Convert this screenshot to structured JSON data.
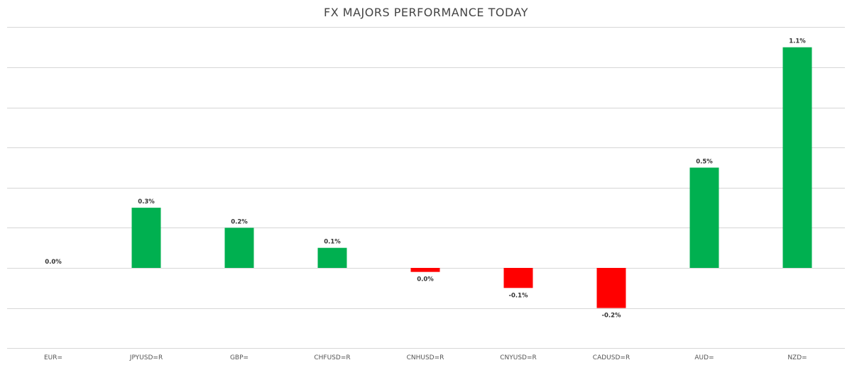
{
  "chart_data": {
    "type": "bar",
    "title": "FX MAJORS PERFORMANCE TODAY",
    "xlabel": "",
    "ylabel": "",
    "categories": [
      "EUR=",
      "JPYUSD=R",
      "GBP=",
      "CHFUSD=R",
      "CNHUSD=R",
      "CNYUSD=R",
      "CADUSD=R",
      "AUD=",
      "NZD="
    ],
    "values": [
      0.0,
      0.3,
      0.2,
      0.1,
      -0.02,
      -0.1,
      -0.2,
      0.5,
      1.1
    ],
    "data_labels": [
      "0.0%",
      "0.3%",
      "0.2%",
      "0.1%",
      "0.0%",
      "-0.1%",
      "-0.2%",
      "0.5%",
      "1.1%"
    ],
    "ylim": [
      -0.5,
      1.2
    ],
    "grid": true,
    "legend": "none",
    "colors": {
      "positive": "#00b050",
      "negative": "#ff0000"
    }
  }
}
